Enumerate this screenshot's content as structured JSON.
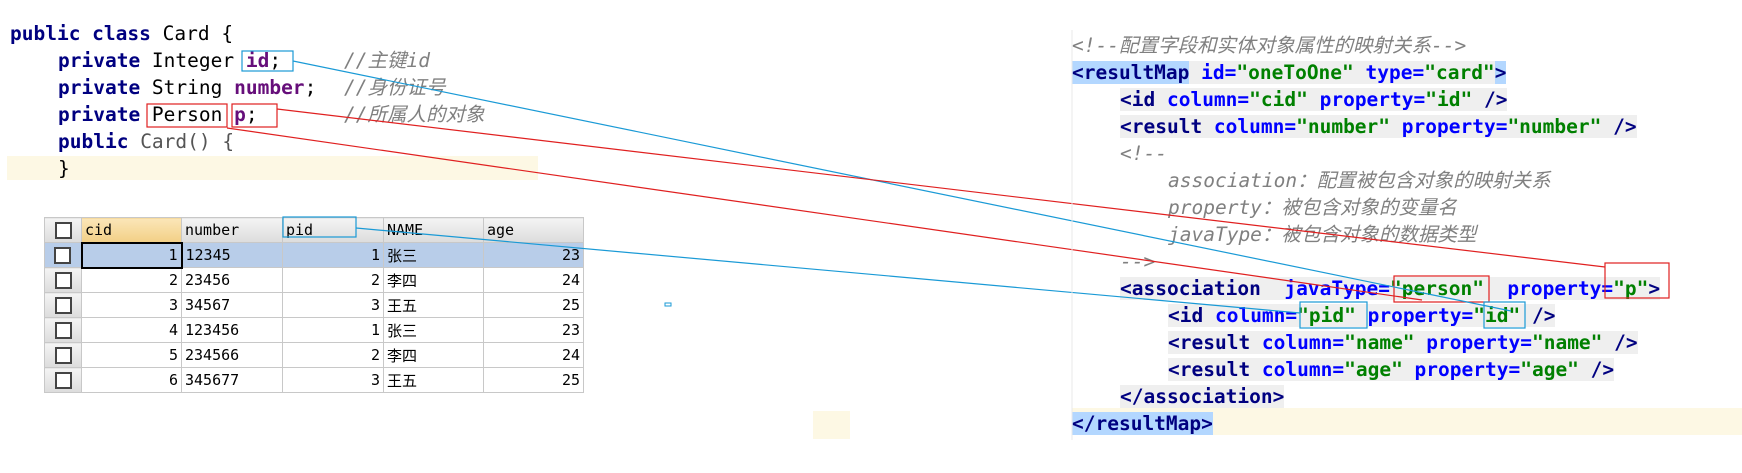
{
  "java_code": {
    "lines": [
      [
        "public class",
        " Card {"
      ],
      [
        "private",
        " Integer ",
        "id",
        ";",
        "//主键id"
      ],
      [
        "private",
        " String ",
        "number",
        ";",
        "//身份证号"
      ],
      [
        "private",
        " Person",
        " p",
        ";",
        "//所属人的对象"
      ],
      [
        "public",
        " Card() {"
      ],
      [
        "}"
      ]
    ]
  },
  "table": {
    "headers": [
      "cid",
      "number",
      "pid",
      "NAME",
      "age"
    ],
    "rows": [
      [
        1,
        "12345",
        1,
        "张三",
        23
      ],
      [
        2,
        "23456",
        2,
        "李四",
        24
      ],
      [
        3,
        "34567",
        3,
        "王五",
        25
      ],
      [
        4,
        "123456",
        1,
        "张三",
        23
      ],
      [
        5,
        "234566",
        2,
        "李四",
        24
      ],
      [
        6,
        "345677",
        3,
        "王五",
        25
      ]
    ]
  },
  "xml_code": {
    "lines": [
      [
        "<!--配置字段和实体对象属性的映射关系-->"
      ],
      [
        "<resultMap",
        " id=",
        "\"oneToOne\"",
        " type=",
        "\"card\"",
        ">"
      ],
      [
        "<id",
        " column=",
        "\"cid\"",
        " property=",
        "\"id\"",
        " />"
      ],
      [
        "<result",
        " column=",
        "\"number\"",
        " property=",
        "\"number\"",
        " />"
      ],
      [
        "<!--"
      ],
      [
        "association：配置被包含对象的映射关系"
      ],
      [
        "property：被包含对象的变量名"
      ],
      [
        "javaType：被包含对象的数据类型"
      ],
      [
        "-->"
      ],
      [
        "<association",
        "  javaType=",
        "\"person\"",
        "  property=",
        "\"p\"",
        ">"
      ],
      [
        "<id",
        " column=",
        "\"pid\"",
        " property=",
        "\"id\"",
        " />"
      ],
      [
        "<result",
        " column=",
        "\"name\"",
        " property=",
        "\"name\"",
        " />"
      ],
      [
        "<result",
        " column=",
        "\"age\"",
        " property=",
        "\"age\"",
        " />"
      ],
      [
        "</association>"
      ],
      [
        "</resultMap>"
      ]
    ]
  }
}
